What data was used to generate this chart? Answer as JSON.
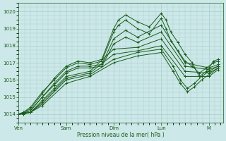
{
  "xlabel": "Pression niveau de la mer( hPa )",
  "bg_color": "#cce8e8",
  "grid_color": "#aacccc",
  "line_color": "#1a5c1a",
  "ylim": [
    1013.5,
    1020.5
  ],
  "yticks": [
    1014,
    1015,
    1016,
    1017,
    1018,
    1019,
    1020
  ],
  "xtick_labels": [
    "Ven",
    "Sam",
    "Dim",
    "Lun",
    "M"
  ],
  "xtick_positions": [
    0,
    1,
    2,
    3,
    4
  ],
  "xlim": [
    0,
    4.3
  ],
  "series": [
    {
      "x": [
        0.0,
        0.1,
        0.25,
        0.5,
        0.75,
        1.0,
        1.25,
        1.5,
        1.75,
        2.0,
        2.1,
        2.25,
        2.5,
        2.75,
        3.0,
        3.1,
        3.2,
        3.35,
        3.5,
        3.65,
        3.8,
        3.95,
        4.1,
        4.2
      ],
      "y": [
        1014.0,
        1014.1,
        1014.3,
        1015.2,
        1016.1,
        1016.8,
        1017.1,
        1017.0,
        1017.2,
        1019.0,
        1019.5,
        1019.8,
        1019.4,
        1019.1,
        1019.9,
        1019.5,
        1018.8,
        1018.2,
        1017.5,
        1017.0,
        1016.2,
        1016.5,
        1017.1,
        1017.2
      ]
    },
    {
      "x": [
        0.0,
        0.1,
        0.25,
        0.5,
        0.75,
        1.0,
        1.25,
        1.5,
        1.75,
        2.0,
        2.1,
        2.25,
        2.5,
        2.75,
        3.0,
        3.1,
        3.2,
        3.35,
        3.5,
        3.65,
        3.8,
        3.95,
        4.1,
        4.2
      ],
      "y": [
        1014.0,
        1014.1,
        1014.4,
        1015.3,
        1016.0,
        1016.7,
        1017.0,
        1016.9,
        1017.1,
        1018.8,
        1019.2,
        1019.5,
        1019.0,
        1018.7,
        1019.6,
        1019.0,
        1018.3,
        1017.7,
        1017.1,
        1016.8,
        1016.4,
        1016.7,
        1017.0,
        1017.1
      ]
    },
    {
      "x": [
        0.0,
        0.1,
        0.25,
        0.5,
        0.75,
        1.0,
        1.25,
        1.5,
        1.75,
        2.0,
        2.25,
        2.5,
        3.0,
        3.5,
        4.0,
        4.2
      ],
      "y": [
        1014.0,
        1014.05,
        1014.2,
        1015.0,
        1015.8,
        1016.5,
        1016.8,
        1016.8,
        1016.9,
        1018.4,
        1018.9,
        1018.5,
        1019.2,
        1017.0,
        1016.7,
        1016.9
      ]
    },
    {
      "x": [
        0.0,
        0.1,
        0.25,
        0.5,
        0.75,
        1.0,
        1.25,
        1.5,
        1.75,
        2.0,
        2.25,
        2.5,
        3.0,
        3.5,
        4.0,
        4.2
      ],
      "y": [
        1014.0,
        1014.05,
        1014.2,
        1015.0,
        1015.7,
        1016.4,
        1016.7,
        1016.7,
        1016.8,
        1018.1,
        1018.5,
        1018.2,
        1018.8,
        1016.8,
        1016.6,
        1016.8
      ]
    },
    {
      "x": [
        0.0,
        0.1,
        0.25,
        0.5,
        0.75,
        1.0,
        1.5,
        2.0,
        2.5,
        3.0,
        3.5,
        4.0,
        4.2
      ],
      "y": [
        1014.0,
        1014.0,
        1014.1,
        1014.8,
        1015.5,
        1016.2,
        1016.5,
        1017.8,
        1017.9,
        1018.4,
        1016.5,
        1016.4,
        1016.7
      ]
    },
    {
      "x": [
        0.0,
        0.1,
        0.25,
        0.5,
        0.75,
        1.0,
        1.5,
        2.0,
        2.5,
        3.0,
        3.5,
        4.0,
        4.2
      ],
      "y": [
        1014.0,
        1014.0,
        1014.1,
        1014.7,
        1015.4,
        1016.1,
        1016.4,
        1017.5,
        1017.7,
        1018.0,
        1016.2,
        1016.2,
        1016.6
      ]
    },
    {
      "x": [
        0.0,
        0.25,
        0.5,
        1.0,
        1.5,
        2.0,
        2.5,
        3.0,
        3.25,
        3.4,
        3.55,
        3.7,
        3.85,
        4.0,
        4.2
      ],
      "y": [
        1014.0,
        1014.1,
        1014.6,
        1016.0,
        1016.3,
        1017.2,
        1017.6,
        1017.8,
        1016.8,
        1016.0,
        1015.5,
        1015.8,
        1016.2,
        1016.5,
        1016.8
      ]
    },
    {
      "x": [
        0.0,
        0.25,
        0.5,
        1.0,
        1.5,
        2.0,
        2.5,
        3.0,
        3.25,
        3.4,
        3.55,
        3.7,
        3.85,
        4.0,
        4.2
      ],
      "y": [
        1014.0,
        1014.1,
        1014.5,
        1015.8,
        1016.2,
        1017.0,
        1017.4,
        1017.6,
        1016.5,
        1015.8,
        1015.3,
        1015.6,
        1016.0,
        1016.3,
        1016.7
      ]
    }
  ]
}
